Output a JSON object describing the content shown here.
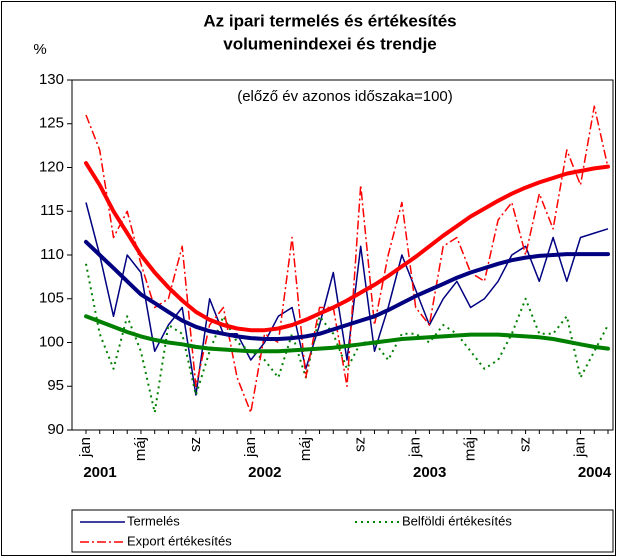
{
  "chart_data": {
    "type": "line",
    "title": [
      "Az ipari termelés és értékesítés",
      "volumenindexei és trendje"
    ],
    "subtitle": "(előző év azonos időszaka=100)",
    "y_label": "%",
    "categories": [
      "jan",
      null,
      null,
      null,
      "máj",
      null,
      null,
      null,
      "sz",
      null,
      null,
      null,
      "jan",
      null,
      null,
      null,
      "máj",
      null,
      null,
      null,
      "sz",
      null,
      null,
      null,
      "jan",
      null,
      null,
      null,
      "máj",
      null,
      null,
      null,
      "sz",
      null,
      null,
      null,
      "jan",
      null,
      null
    ],
    "years": [
      "2001",
      "2002",
      "2003",
      "2004"
    ],
    "ylim": [
      90,
      130
    ],
    "yticks": [
      90,
      95,
      100,
      105,
      110,
      115,
      120,
      125,
      130
    ],
    "series": [
      {
        "name": "Termelés",
        "color": "#000080",
        "style": "solid",
        "values": [
          116,
          110,
          103,
          110,
          108,
          99,
          102,
          104,
          94,
          105,
          101,
          101,
          98,
          100,
          103,
          104,
          97,
          102,
          108,
          98,
          111,
          99,
          104,
          110,
          106,
          102,
          105,
          107,
          104,
          105,
          107,
          110,
          111,
          107,
          112,
          107,
          112,
          112.5,
          113
        ]
      },
      {
        "name": "Belföldi értékesítés",
        "color": "#008000",
        "style": "dotted",
        "values": [
          109,
          101,
          97,
          103,
          99,
          92,
          102,
          101,
          94,
          99,
          103,
          100,
          99,
          98,
          96,
          101,
          96,
          103,
          101,
          97,
          100,
          100,
          98,
          101,
          101,
          100,
          102,
          101,
          99,
          97,
          98,
          101,
          105,
          101,
          101,
          103,
          96,
          99,
          102
        ]
      },
      {
        "name": "Export értékesítés",
        "color": "#ff0000",
        "style": "dashdot",
        "values": [
          126,
          122,
          112,
          115,
          109,
          104,
          105,
          111,
          95,
          102,
          104,
          96,
          92,
          101,
          100,
          112,
          96,
          104,
          104,
          95,
          118,
          102,
          110,
          116,
          104,
          102,
          111,
          112,
          108,
          107,
          114,
          116,
          110,
          117,
          113,
          122,
          118,
          127,
          120
        ]
      },
      {
        "color": "#000080",
        "style": "trend",
        "values": [
          111.5,
          110,
          108.5,
          107,
          105.5,
          104.5,
          103.5,
          102.5,
          101.8,
          101.3,
          101,
          100.7,
          100.5,
          100.4,
          100.4,
          100.5,
          100.7,
          101,
          101.5,
          102,
          102.5,
          103,
          103.7,
          104.5,
          105.3,
          106,
          106.7,
          107.4,
          108,
          108.5,
          109,
          109.4,
          109.7,
          109.9,
          110,
          110.1,
          110.1,
          110.1,
          110.1
        ]
      },
      {
        "color": "#008000",
        "style": "trend",
        "values": [
          103,
          102.4,
          101.8,
          101.2,
          100.7,
          100.3,
          100,
          99.8,
          99.5,
          99.3,
          99.2,
          99.1,
          99,
          99,
          99,
          99.1,
          99.2,
          99.3,
          99.4,
          99.6,
          99.8,
          100,
          100.2,
          100.4,
          100.5,
          100.6,
          100.7,
          100.8,
          100.9,
          100.9,
          100.9,
          100.8,
          100.7,
          100.6,
          100.4,
          100.1,
          99.8,
          99.5,
          99.3
        ]
      },
      {
        "color": "#ff0000",
        "style": "trend",
        "values": [
          120.5,
          118,
          115,
          112.5,
          110,
          108,
          106.3,
          104.8,
          103.5,
          102.6,
          102,
          101.6,
          101.4,
          101.4,
          101.6,
          102,
          102.6,
          103.3,
          104,
          104.8,
          105.7,
          106.6,
          107.6,
          108.7,
          109.8,
          111,
          112.2,
          113.3,
          114.4,
          115.3,
          116.2,
          117,
          117.7,
          118.3,
          118.8,
          119.3,
          119.6,
          119.9,
          120.1
        ]
      }
    ]
  }
}
